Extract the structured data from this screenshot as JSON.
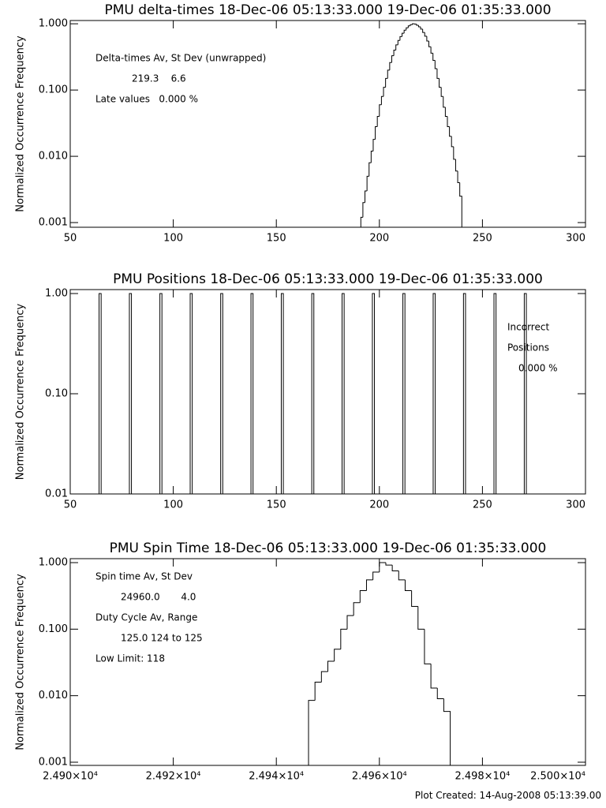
{
  "chart_data": [
    {
      "type": "histogram",
      "title": "PMU delta-times 18-Dec-06 05:13:33.000 19-Dec-06 01:35:33.000",
      "y_label": "Normalized Occurrence Frequency",
      "log_y": true,
      "color": "#000000",
      "annotations": [
        "Delta-times Av, St Dev (unwrapped)",
        "219.3    6.6",
        "Late values   0.000 %"
      ],
      "bins": [
        191,
        192,
        193,
        194,
        195,
        196,
        197,
        198,
        199,
        200,
        201,
        202,
        203,
        204,
        205,
        206,
        207,
        208,
        209,
        210,
        211,
        212,
        213,
        214,
        215,
        216,
        217,
        218,
        219,
        220,
        221,
        222,
        223,
        224,
        225,
        226,
        227,
        228,
        229,
        230,
        231,
        232,
        233,
        234,
        235,
        236,
        237,
        238,
        239,
        240
      ],
      "values": [
        0.0012,
        0.002,
        0.003,
        0.005,
        0.008,
        0.012,
        0.018,
        0.028,
        0.04,
        0.06,
        0.08,
        0.11,
        0.15,
        0.2,
        0.26,
        0.33,
        0.4,
        0.48,
        0.56,
        0.64,
        0.72,
        0.8,
        0.87,
        0.93,
        0.97,
        1.0,
        0.99,
        0.95,
        0.9,
        0.83,
        0.74,
        0.65,
        0.55,
        0.45,
        0.36,
        0.28,
        0.21,
        0.15,
        0.11,
        0.08,
        0.055,
        0.04,
        0.028,
        0.02,
        0.014,
        0.009,
        0.006,
        0.004,
        0.0025
      ],
      "xlim": [
        50,
        300
      ],
      "xticks": [
        50,
        100,
        150,
        200,
        250,
        300
      ],
      "ylim": [
        0.00085,
        1.12
      ],
      "yticks": [
        {
          "value": 0.001,
          "label": "0.001"
        },
        {
          "value": 0.01,
          "label": "0.010"
        },
        {
          "value": 0.1,
          "label": "0.100"
        },
        {
          "value": 1,
          "label": "1.000"
        }
      ]
    },
    {
      "type": "spikes",
      "title": "PMU Positions 18-Dec-06 05:13:33.000 19-Dec-06 01:35:33.000",
      "y_label": "Normalized Occurrence Frequency",
      "log_y": true,
      "color": "#000000",
      "annotations": [
        "Incorrect",
        "Positions",
        "0.000 %"
      ],
      "x": [
        64,
        78.7,
        93.5,
        108.2,
        123,
        137.7,
        152.4,
        167.2,
        181.9,
        196.6,
        211.4,
        226.1,
        240.8,
        255.6,
        270.3
      ],
      "values": [
        1,
        1,
        1,
        1,
        1,
        1,
        1,
        1,
        1,
        1,
        1,
        1,
        1,
        1,
        1
      ],
      "xlim": [
        50,
        300
      ],
      "xticks": [
        50,
        100,
        150,
        200,
        250,
        300
      ],
      "ylim": [
        0.01,
        1.095
      ],
      "yticks": [
        {
          "value": 0.01,
          "label": "0.01"
        },
        {
          "value": 0.1,
          "label": "0.10"
        },
        {
          "value": 1,
          "label": "1.00"
        }
      ]
    },
    {
      "type": "histogram",
      "title": "PMU Spin Time 18-Dec-06 05:13:33.000 19-Dec-06 01:35:33.000",
      "y_label": "Normalized Occurrence Frequency",
      "log_y": true,
      "color": "#000000",
      "annotations": [
        "Spin time Av, St Dev",
        "24960.0       4.0",
        "Duty Cycle Av, Range",
        "125.0 124 to 125",
        "Low Limit: 118"
      ],
      "bins": [
        24946.25,
        24947.5,
        24948.75,
        24950,
        24951.25,
        24952.5,
        24953.75,
        24955,
        24956.25,
        24957.5,
        24958.75,
        24960,
        24961.25,
        24962.5,
        24963.75,
        24965,
        24966.25,
        24967.5,
        24968.75,
        24970,
        24971.25,
        24972.5,
        24973.75
      ],
      "values": [
        0.0085,
        0.016,
        0.023,
        0.033,
        0.05,
        0.1,
        0.16,
        0.25,
        0.38,
        0.55,
        0.72,
        1.0,
        0.92,
        0.75,
        0.55,
        0.38,
        0.22,
        0.1,
        0.03,
        0.013,
        0.009,
        0.0058
      ],
      "xlim": [
        24900,
        25000
      ],
      "xticks": [
        {
          "value": 24900,
          "label": "2.490×10⁴"
        },
        {
          "value": 24920,
          "label": "2.492×10⁴"
        },
        {
          "value": 24940,
          "label": "2.494×10⁴"
        },
        {
          "value": 24960,
          "label": "2.496×10⁴"
        },
        {
          "value": 24980,
          "label": "2.498×10⁴"
        },
        {
          "value": 25000,
          "label": "2.500×10⁴"
        }
      ],
      "ylim": [
        0.000896,
        1.147
      ],
      "yticks": [
        {
          "value": 0.001,
          "label": "0.001"
        },
        {
          "value": 0.01,
          "label": "0.010"
        },
        {
          "value": 0.1,
          "label": "0.100"
        },
        {
          "value": 1,
          "label": "1.000"
        }
      ]
    }
  ],
  "footer": "Plot Created: 14-Aug-2008 05:13:39.00"
}
